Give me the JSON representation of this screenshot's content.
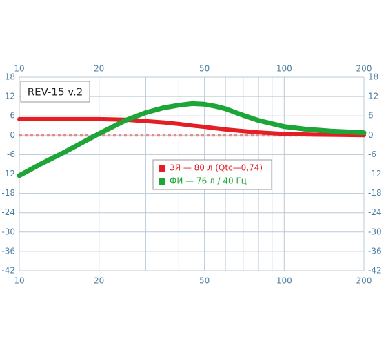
{
  "chart_data": {
    "type": "line",
    "title": "REV-15 v.2",
    "xscale": "log",
    "xlim": [
      10,
      200
    ],
    "xticks": [
      10,
      20,
      50,
      100,
      200
    ],
    "xgrid_minor": [
      30,
      40,
      60,
      70,
      80,
      90
    ],
    "ylim": [
      -42,
      18
    ],
    "yticks": [
      -42,
      -36,
      -30,
      -24,
      -18,
      -12,
      -6,
      0,
      6,
      12,
      18
    ],
    "grid": true,
    "reference_line": 0,
    "reference_color": "#e88a8a",
    "legend": "center",
    "series": [
      {
        "name": "ЗЯ — 80 л (Qtc—0,74)",
        "color": "#e31e24",
        "x": [
          10,
          15,
          20,
          25,
          30,
          35,
          40,
          45,
          50,
          60,
          70,
          80,
          100,
          130,
          160,
          200
        ],
        "values": [
          5,
          5,
          5,
          4.8,
          4.4,
          4,
          3.5,
          3,
          2.6,
          1.8,
          1.3,
          0.9,
          0.4,
          0.2,
          0.1,
          0
        ]
      },
      {
        "name": "ФИ — 76 л / 40 Гц",
        "color": "#1ea538",
        "x": [
          10,
          12,
          15,
          18,
          20,
          25,
          30,
          35,
          40,
          45,
          50,
          55,
          60,
          70,
          80,
          100,
          120,
          150,
          200
        ],
        "values": [
          -12.5,
          -9,
          -5,
          -1.5,
          0.5,
          4.5,
          7,
          8.5,
          9.3,
          9.8,
          9.6,
          9,
          8.2,
          6.2,
          4.6,
          2.7,
          1.9,
          1.3,
          0.8
        ]
      }
    ]
  }
}
